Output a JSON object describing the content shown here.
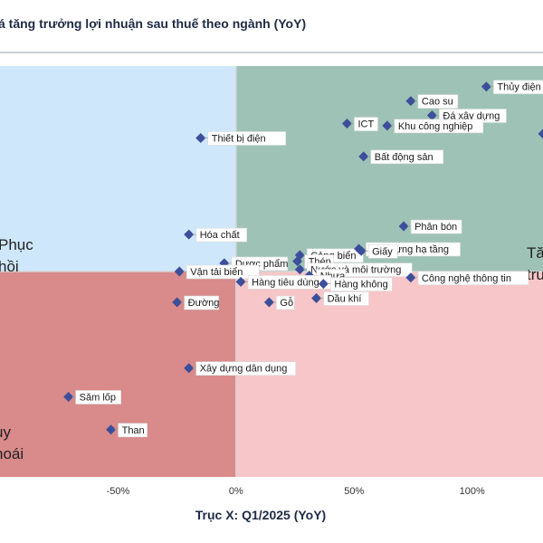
{
  "chart_data": {
    "type": "scatter",
    "title": "á tăng trưởng lợi nhuận sau thuế theo ngành (YoY)",
    "xlabel": "Trục X: Q1/2025 (YoY)",
    "xlim": [
      -100,
      130
    ],
    "ylim": [
      -100,
      100
    ],
    "x_ticks": [
      {
        "value": -50,
        "label": "-50%"
      },
      {
        "value": 0,
        "label": "0%"
      },
      {
        "value": 50,
        "label": "50%"
      },
      {
        "value": 100,
        "label": "100%"
      }
    ],
    "quadrant_labels": {
      "top_left": [
        "Phục",
        "hồi"
      ],
      "top_right": [
        "Tă",
        "trư"
      ],
      "bottom_left": [
        "uy",
        "hoái"
      ]
    },
    "colors": {
      "marker": "#3d4e9a",
      "top_left": "#cfe7fb",
      "top_right": "#9ec3b6",
      "bottom_left": "#d98a8a",
      "bottom_right": "#f7c6c8",
      "axis": "#d6d6d6",
      "title": "#1f2a44"
    },
    "points": [
      {
        "label": "Thủy điện",
        "x": 106,
        "y": 90
      },
      {
        "label": "Cao su",
        "x": 74,
        "y": 83
      },
      {
        "label": "Đá xây dựng",
        "x": 83,
        "y": 76
      },
      {
        "label": "ICT",
        "x": 47,
        "y": 72
      },
      {
        "label": "Khu công nghiệp",
        "x": 64,
        "y": 71
      },
      {
        "label": "Thiết bị điện",
        "x": -15,
        "y": 65
      },
      {
        "label": "Bất động sản",
        "x": 54,
        "y": 56
      },
      {
        "label": "",
        "x": 130,
        "y": 67
      },
      {
        "label": "Phân bón",
        "x": 71,
        "y": 22
      },
      {
        "label": "Hóa chất",
        "x": -20,
        "y": 18
      },
      {
        "label": "Cảng biển",
        "x": 27,
        "y": 8
      },
      {
        "label": "Dược phẩm",
        "x": -5,
        "y": 4
      },
      {
        "label": "Xây dựng hạ tầng",
        "x": 52,
        "y": 11
      },
      {
        "label": "Giấy",
        "x": 53,
        "y": 10
      },
      {
        "label": "Thép",
        "x": 26,
        "y": 5
      },
      {
        "label": "Vận tải biển",
        "x": -24,
        "y": 0
      },
      {
        "label": "Nước và môi trường",
        "x": 27,
        "y": 1
      },
      {
        "label": "Nhựa",
        "x": 31,
        "y": -2
      },
      {
        "label": "Công nghệ thông tin",
        "x": 74,
        "y": -3
      },
      {
        "label": "Hàng tiêu dùng",
        "x": 2,
        "y": -5
      },
      {
        "label": "Hàng không",
        "x": 37,
        "y": -6
      },
      {
        "label": "Đường",
        "x": -25,
        "y": -15
      },
      {
        "label": "Dầu khí",
        "x": 34,
        "y": -13
      },
      {
        "label": "Gỗ",
        "x": 14,
        "y": -15
      },
      {
        "label": "Xây dựng dân dụng",
        "x": -20,
        "y": -47
      },
      {
        "label": "Săm lốp",
        "x": -71,
        "y": -61
      },
      {
        "label": "Than",
        "x": -53,
        "y": -77
      }
    ]
  }
}
